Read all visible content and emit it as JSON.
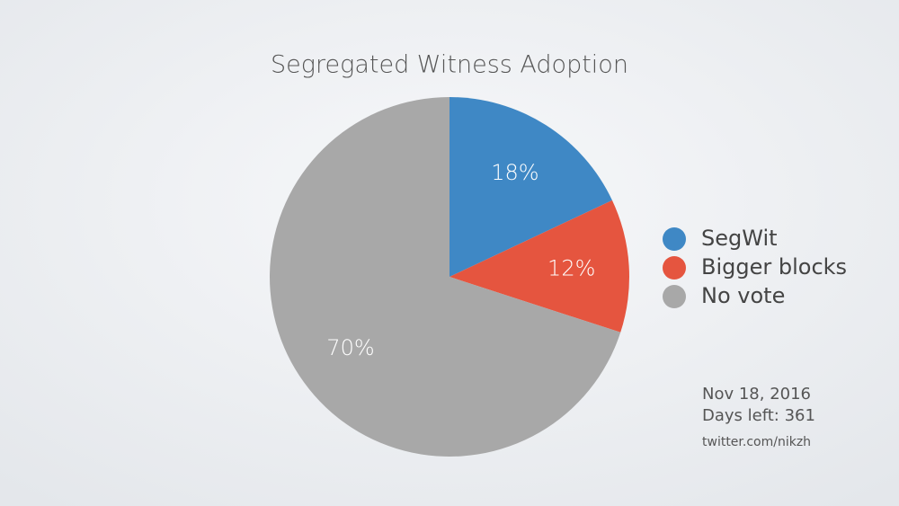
{
  "chart_data": {
    "type": "pie",
    "title": "Segregated Witness Adoption",
    "categories": [
      "SegWit",
      "Bigger blocks",
      "No vote"
    ],
    "values": [
      18,
      12,
      70
    ],
    "value_labels": [
      "18%",
      "12%",
      "70%"
    ],
    "colors": [
      "#3f88c5",
      "#e5553f",
      "#a8a8a8"
    ],
    "legend": "right",
    "annotations": [
      "Nov 18, 2016",
      "Days left: 361",
      "twitter.com/nikzh"
    ]
  }
}
